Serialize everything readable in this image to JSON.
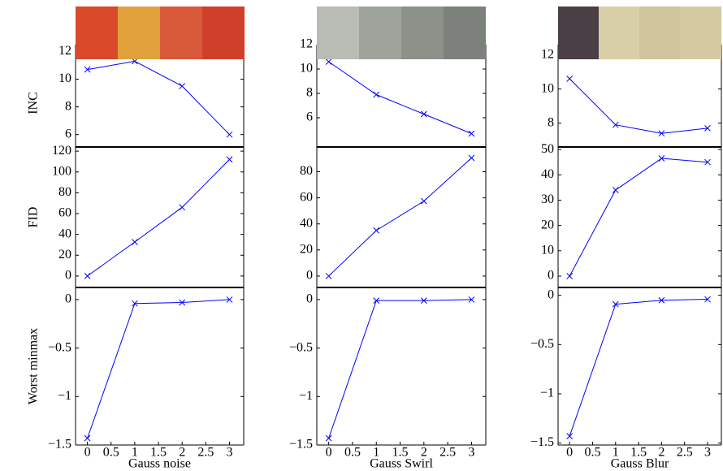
{
  "chart_data": [
    {
      "type": "line",
      "ylabel": "INC",
      "x": [
        0,
        1,
        2,
        3
      ],
      "values": [
        10.7,
        11.3,
        9.5,
        6.0
      ],
      "color": "#0000ff",
      "xlim": [
        -0.25,
        3.3
      ],
      "ylim": [
        5.1,
        12.5
      ],
      "yticks": [
        6,
        8,
        10,
        12
      ]
    },
    {
      "type": "line",
      "x": [
        0,
        1,
        2,
        3
      ],
      "values": [
        10.6,
        7.9,
        6.3,
        4.7
      ],
      "color": "#0000ff",
      "xlim": [
        -0.25,
        3.3
      ],
      "ylim": [
        3.6,
        12
      ],
      "yticks": [
        6,
        8,
        10,
        12
      ]
    },
    {
      "type": "line",
      "x": [
        0,
        1,
        2,
        3
      ],
      "values": [
        10.6,
        7.9,
        7.4,
        7.7
      ],
      "color": "#0000ff",
      "xlim": [
        -0.25,
        3.3
      ],
      "ylim": [
        6.6,
        12.6
      ],
      "yticks": [
        8,
        10,
        12
      ]
    },
    {
      "type": "line",
      "ylabel": "FID",
      "x": [
        0,
        1,
        2,
        3
      ],
      "values": [
        0,
        32.7,
        66,
        112
      ],
      "color": "#0000ff",
      "xlim": [
        -0.25,
        3.3
      ],
      "ylim": [
        -11,
        124
      ],
      "yticks": [
        0,
        20,
        40,
        60,
        80,
        100,
        120
      ]
    },
    {
      "type": "line",
      "x": [
        0,
        1,
        2,
        3
      ],
      "values": [
        0,
        35,
        57.5,
        90.6
      ],
      "color": "#0000ff",
      "xlim": [
        -0.25,
        3.3
      ],
      "ylim": [
        -8.75,
        99
      ],
      "yticks": [
        0,
        20,
        40,
        60,
        80
      ]
    },
    {
      "type": "line",
      "x": [
        0,
        1,
        2,
        3
      ],
      "values": [
        0,
        34,
        46.5,
        45
      ],
      "color": "#0000ff",
      "xlim": [
        -0.25,
        3.3
      ],
      "ylim": [
        -4.5,
        51
      ],
      "yticks": [
        0,
        10,
        20,
        30,
        40,
        50
      ]
    },
    {
      "type": "line",
      "ylabel": "Worst minmax",
      "xlabel": "Gauss noise",
      "x": [
        0,
        1,
        2,
        3
      ],
      "values": [
        -1.43,
        -0.04,
        -0.03,
        0
      ],
      "color": "#0000ff",
      "xlim": [
        -0.25,
        3.3
      ],
      "ylim": [
        -1.5,
        0.125
      ],
      "xticks": [
        0,
        0.5,
        1,
        1.5,
        2,
        2.5,
        3
      ],
      "yticks": [
        {
          "value": -1.5,
          "label": "−1.5"
        },
        {
          "value": -1,
          "label": "−1"
        },
        {
          "value": -0.5,
          "label": "−0.5"
        },
        0
      ]
    },
    {
      "type": "line",
      "xlabel": "Gauss Swirl",
      "x": [
        0,
        1,
        2,
        3
      ],
      "values": [
        -1.43,
        -0.01,
        -0.01,
        0
      ],
      "color": "#0000ff",
      "xlim": [
        -0.25,
        3.3
      ],
      "ylim": [
        -1.5,
        0.125
      ],
      "xticks": [
        0,
        0.5,
        1,
        1.5,
        2,
        2.5,
        3
      ],
      "yticks": [
        {
          "value": -1.5,
          "label": "−1.5"
        },
        {
          "value": -1,
          "label": "−1"
        },
        {
          "value": -0.5,
          "label": "−0.5"
        },
        0
      ]
    },
    {
      "type": "line",
      "xlabel": "Gauss Blur",
      "x": [
        0,
        1,
        2,
        3
      ],
      "values": [
        -1.43,
        -0.09,
        -0.05,
        -0.04
      ],
      "color": "#0000ff",
      "xlim": [
        -0.25,
        3.3
      ],
      "ylim": [
        -1.52,
        0.08
      ],
      "xticks": [
        0,
        0.5,
        1,
        1.5,
        2,
        2.5,
        3
      ],
      "yticks": [
        {
          "value": -1.5,
          "label": "−1.5"
        },
        {
          "value": -1,
          "label": "−1"
        },
        {
          "value": -0.5,
          "label": "−0.5"
        },
        0
      ]
    }
  ]
}
